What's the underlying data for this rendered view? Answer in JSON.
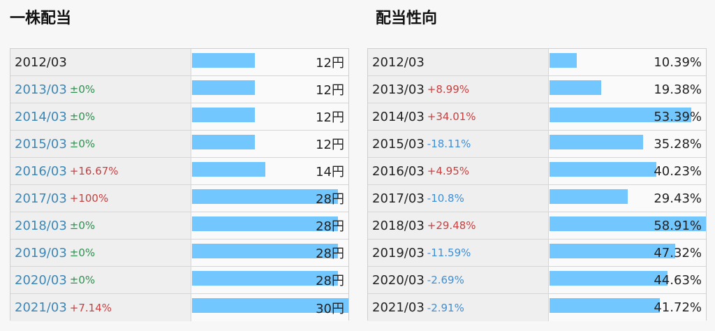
{
  "left_panel": {
    "title": "一株配当",
    "max": 30,
    "rows": [
      {
        "year": "2012/03",
        "change": "",
        "change_type": "none",
        "value": 12,
        "value_label": "12円"
      },
      {
        "year": "2013/03",
        "change": "±0%",
        "change_type": "flat",
        "value": 12,
        "value_label": "12円"
      },
      {
        "year": "2014/03",
        "change": "±0%",
        "change_type": "flat",
        "value": 12,
        "value_label": "12円"
      },
      {
        "year": "2015/03",
        "change": "±0%",
        "change_type": "flat",
        "value": 12,
        "value_label": "12円"
      },
      {
        "year": "2016/03",
        "change": "+16.67%",
        "change_type": "up",
        "value": 14,
        "value_label": "14円"
      },
      {
        "year": "2017/03",
        "change": "+100%",
        "change_type": "up",
        "value": 28,
        "value_label": "28円"
      },
      {
        "year": "2018/03",
        "change": "±0%",
        "change_type": "flat",
        "value": 28,
        "value_label": "28円"
      },
      {
        "year": "2019/03",
        "change": "±0%",
        "change_type": "flat",
        "value": 28,
        "value_label": "28円"
      },
      {
        "year": "2020/03",
        "change": "±0%",
        "change_type": "flat",
        "value": 28,
        "value_label": "28円"
      },
      {
        "year": "2021/03",
        "change": "+7.14%",
        "change_type": "up",
        "value": 30,
        "value_label": "30円"
      }
    ]
  },
  "right_panel": {
    "title": "配当性向",
    "max": 100,
    "rows": [
      {
        "year": "2012/03",
        "change": "",
        "change_type": "none",
        "value": 10.39,
        "value_label": "10.39%"
      },
      {
        "year": "2013/03",
        "change": "+8.99%",
        "change_type": "up",
        "value": 19.38,
        "value_label": "19.38%"
      },
      {
        "year": "2014/03",
        "change": "+34.01%",
        "change_type": "up",
        "value": 53.39,
        "value_label": "53.39%"
      },
      {
        "year": "2015/03",
        "change": "-18.11%",
        "change_type": "down",
        "value": 35.28,
        "value_label": "35.28%"
      },
      {
        "year": "2016/03",
        "change": "+4.95%",
        "change_type": "up",
        "value": 40.23,
        "value_label": "40.23%"
      },
      {
        "year": "2017/03",
        "change": "-10.8%",
        "change_type": "down",
        "value": 29.43,
        "value_label": "29.43%"
      },
      {
        "year": "2018/03",
        "change": "+29.48%",
        "change_type": "up",
        "value": 58.91,
        "value_label": "58.91%"
      },
      {
        "year": "2019/03",
        "change": "-11.59%",
        "change_type": "down",
        "value": 47.32,
        "value_label": "47.32%"
      },
      {
        "year": "2020/03",
        "change": "-2.69%",
        "change_type": "down",
        "value": 44.63,
        "value_label": "44.63%"
      },
      {
        "year": "2021/03",
        "change": "-2.91%",
        "change_type": "down",
        "value": 41.72,
        "value_label": "41.72%"
      }
    ]
  },
  "colors": {
    "bar": "#73c7ff",
    "up": "#c94040",
    "down": "#3d8fd8",
    "flat": "#2f8f4f",
    "year_link": "#3a87b8"
  }
}
